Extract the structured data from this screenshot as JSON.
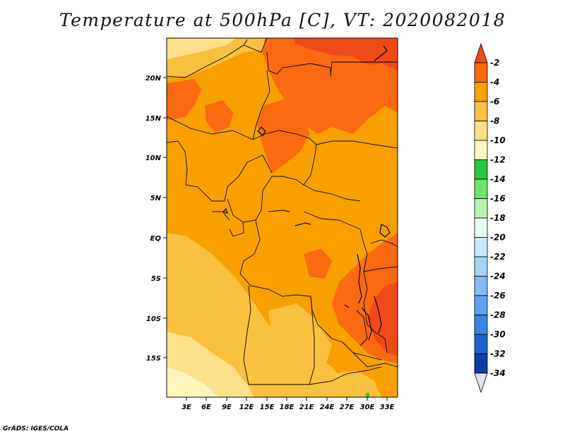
{
  "title": "Temperature at 500hPa [C], VT: 2020082018",
  "credit": "GrADS: IGES/COLA",
  "map": {
    "lat_labels": [
      "20N",
      "15N",
      "10N",
      "5N",
      "EQ",
      "5S",
      "10S",
      "15S"
    ],
    "lon_labels": [
      "3E",
      "6E",
      "9E",
      "12E",
      "15E",
      "18E",
      "21E",
      "24E",
      "27E",
      "30E",
      "33E"
    ]
  },
  "colorbar": {
    "labels": [
      "-2",
      "-4",
      "-6",
      "-8",
      "-10",
      "-12",
      "-14",
      "-16",
      "-18",
      "-20",
      "-22",
      "-24",
      "-26",
      "-28",
      "-30",
      "-32",
      "-34"
    ],
    "colors": {
      "gt_m2": "#f04a18",
      "m2_m4": "#fa6a10",
      "m4_m6": "#f8a000",
      "m6_m8": "#fac040",
      "m8_m10": "#fde08a",
      "m10_m12": "#fff6be",
      "m12_m14": "#28c840",
      "m14_m16": "#6ee468",
      "m16_m18": "#b8f4b0",
      "m18_m20": "#e6fcf2",
      "m20_m22": "#cbe8fc",
      "m22_m24": "#a6d2fa",
      "m24_m26": "#82bcf4",
      "m26_m28": "#5ea2ee",
      "m28_m30": "#3a86e4",
      "m30_m32": "#1e62cc",
      "m32_m34": "#0e3ca8",
      "lt_m34": "#e2e2f6"
    }
  }
}
